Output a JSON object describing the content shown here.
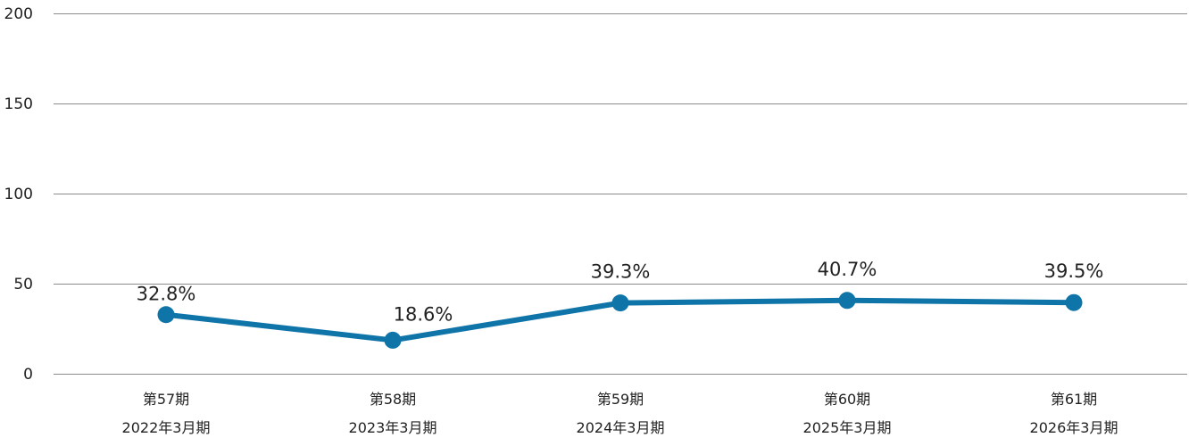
{
  "chart_data": {
    "type": "line",
    "title": "",
    "xlabel": "",
    "ylabel": "",
    "categories": [
      [
        "第57期",
        "2022年3月期"
      ],
      [
        "第58期",
        "2023年3月期"
      ],
      [
        "第59期",
        "2024年3月期"
      ],
      [
        "第60期",
        "2025年3月期"
      ],
      [
        "第61期",
        "2026年3月期"
      ]
    ],
    "series": [
      {
        "values": [
          32.8,
          18.6,
          39.3,
          40.7,
          39.5
        ],
        "data_labels": [
          "32.8%",
          "18.6%",
          "39.3%",
          "40.7%",
          "39.5%"
        ],
        "color": "#0f74a8"
      }
    ],
    "ylim": [
      0,
      200
    ],
    "yticks": [
      0,
      50,
      100,
      150,
      200
    ],
    "grid": true,
    "legend": "none"
  }
}
